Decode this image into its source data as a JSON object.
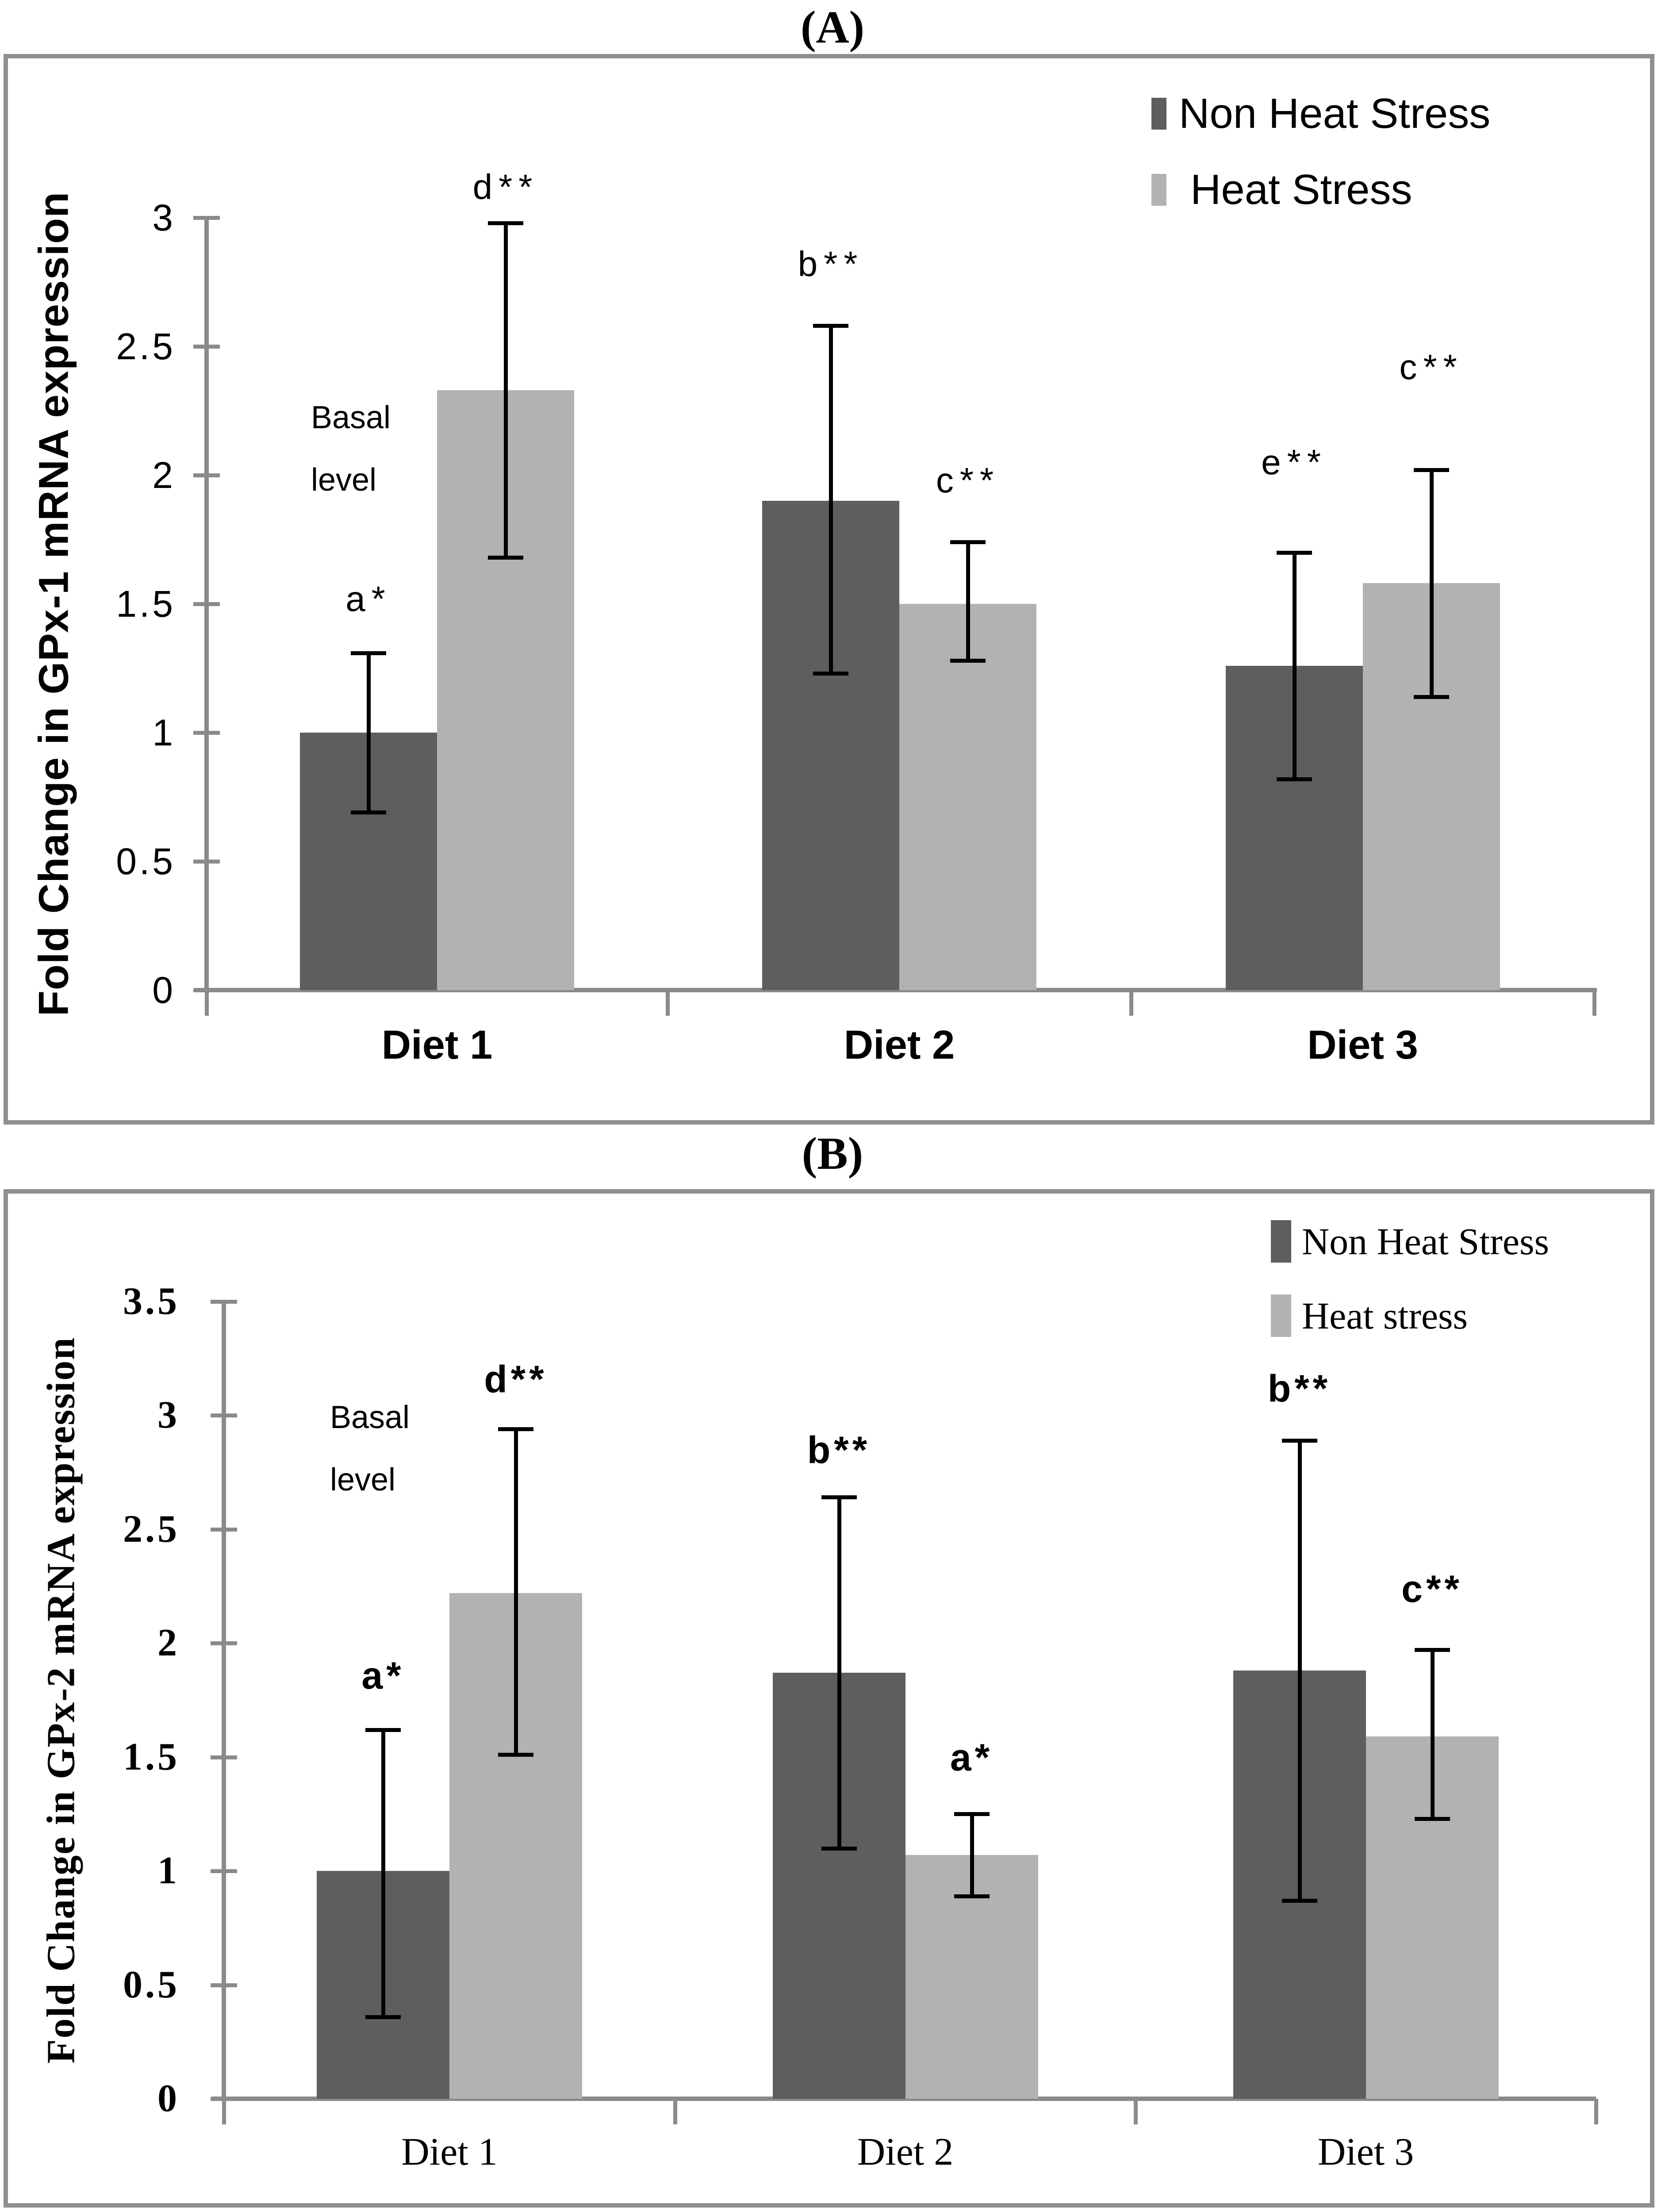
{
  "figure": {
    "panel_a_title": "(A)",
    "panel_b_title": "(B)"
  },
  "chart_data": [
    {
      "panel_label": "(A)",
      "type": "bar",
      "ylabel": "Fold Change in GPx-1 mRNA expression",
      "xlabel": "",
      "ylim": [
        0,
        3
      ],
      "ytick_step": 0.5,
      "yticks": [
        "0",
        "0.5",
        "1",
        "1.5",
        "2",
        "2.5",
        "3"
      ],
      "categories": [
        "Diet 1",
        "Diet 2",
        "Diet 3"
      ],
      "grid": false,
      "legend_position": "top-right",
      "series": [
        {
          "name": "Non Heat Stress",
          "color": "#5e5e5e",
          "values": [
            1.0,
            1.9,
            1.26
          ],
          "err_low": [
            0.69,
            1.23,
            0.82
          ],
          "err_high": [
            1.31,
            2.58,
            1.7
          ]
        },
        {
          "name": "Heat Stress",
          "color": "#b2b2b2",
          "values": [
            2.33,
            1.5,
            1.58
          ],
          "err_low": [
            1.68,
            1.28,
            1.14
          ],
          "err_high": [
            2.98,
            1.74,
            2.02
          ]
        }
      ],
      "annotations": [
        {
          "category": 0,
          "series": 0,
          "text": "a*",
          "y": 1.44
        },
        {
          "category": 0,
          "series": 1,
          "text": "d**",
          "y": 3.04
        },
        {
          "category": 1,
          "series": 0,
          "text": "b**",
          "y": 2.74
        },
        {
          "category": 1,
          "series": 1,
          "text": "c**",
          "y": 1.9
        },
        {
          "category": 2,
          "series": 0,
          "text": "e**",
          "y": 1.97
        },
        {
          "category": 2,
          "series": 1,
          "text": "c**",
          "y": 2.34
        }
      ],
      "note": {
        "lines": [
          "Basal",
          "level"
        ],
        "category": 0,
        "series": 0,
        "y": 1.86,
        "x_offset": -40
      }
    },
    {
      "panel_label": "(B)",
      "type": "bar",
      "ylabel": "Fold Change in GPx-2 mRNA  expression",
      "xlabel": "",
      "ylim": [
        0,
        3.5
      ],
      "ytick_step": 0.5,
      "yticks": [
        "0",
        "0.5",
        "1",
        "1.5",
        "2",
        "2.5",
        "3",
        "3.5"
      ],
      "categories": [
        "Diet 1",
        "Diet 2",
        "Diet 3"
      ],
      "grid": false,
      "legend_position": "top-right",
      "series": [
        {
          "name": "Non Heat Stress",
          "color": "#5e5e5e",
          "values": [
            1.0,
            1.87,
            1.88
          ],
          "err_low": [
            0.36,
            1.1,
            0.87
          ],
          "err_high": [
            1.62,
            2.64,
            2.89
          ]
        },
        {
          "name": "Heat stress",
          "color": "#b2b2b2",
          "values": [
            2.22,
            1.07,
            1.59
          ],
          "err_low": [
            1.51,
            0.89,
            1.23
          ],
          "err_high": [
            2.94,
            1.25,
            1.97
          ]
        }
      ],
      "annotations": [
        {
          "category": 0,
          "series": 0,
          "text": "a*",
          "y": 1.76
        },
        {
          "category": 0,
          "series": 1,
          "text": "d**",
          "y": 3.06
        },
        {
          "category": 1,
          "series": 0,
          "text": "b**",
          "y": 2.75
        },
        {
          "category": 1,
          "series": 1,
          "text": "a*",
          "y": 1.4
        },
        {
          "category": 2,
          "series": 0,
          "text": "b**",
          "y": 3.02
        },
        {
          "category": 2,
          "series": 1,
          "text": "c**",
          "y": 2.14
        }
      ],
      "note": {
        "lines": [
          "Basal",
          "level"
        ],
        "category": 0,
        "series": 0,
        "y": 2.58,
        "x_offset": -30
      }
    }
  ]
}
